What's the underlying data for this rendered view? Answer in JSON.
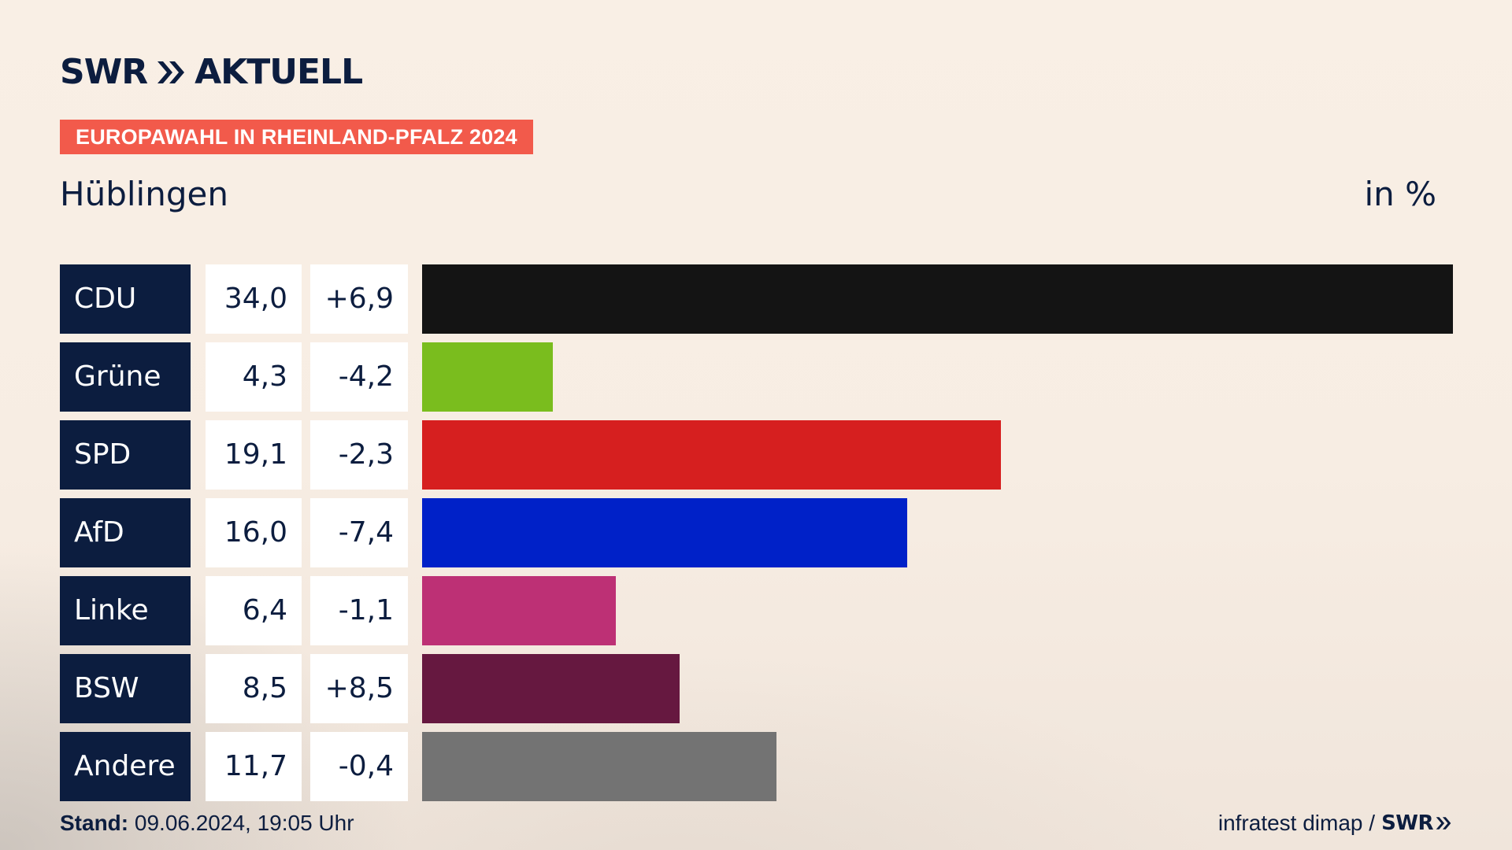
{
  "header": {
    "brand_swr": "SWR",
    "brand_aktuell": "AKTUELL",
    "badge": "EUROPAWAHL IN RHEINLAND-PFALZ 2024",
    "place": "Hüblingen",
    "unit": "in %"
  },
  "colors": {
    "navy": "#0c1d3f",
    "badge": "#f25a4b"
  },
  "chart_data": {
    "type": "bar",
    "orientation": "horizontal",
    "categories": [
      "CDU",
      "Grüne",
      "SPD",
      "AfD",
      "Linke",
      "BSW",
      "Andere"
    ],
    "values": [
      34.0,
      4.3,
      19.1,
      16.0,
      6.4,
      8.5,
      11.7
    ],
    "value_labels": [
      "34,0",
      "4,3",
      "19,1",
      "16,0",
      "6,4",
      "8,5",
      "11,7"
    ],
    "diff_labels": [
      "+6,9",
      "-4,2",
      "-2,3",
      "-7,4",
      "-1,1",
      "+8,5",
      "-0,4"
    ],
    "diffs": [
      6.9,
      -4.2,
      -2.3,
      -7.4,
      -1.1,
      8.5,
      -0.4
    ],
    "bar_colors": [
      "#141414",
      "#7abd1e",
      "#d61f1f",
      "#0021c8",
      "#bd3075",
      "#661840",
      "#737373"
    ],
    "xlim": [
      0,
      34.0
    ],
    "grid": false,
    "legend": "none"
  },
  "footer": {
    "stand_label": "Stand:",
    "stand_value": " 09.06.2024, 19:05 Uhr",
    "source": "infratest dimap /",
    "source_logo": "SWR"
  }
}
